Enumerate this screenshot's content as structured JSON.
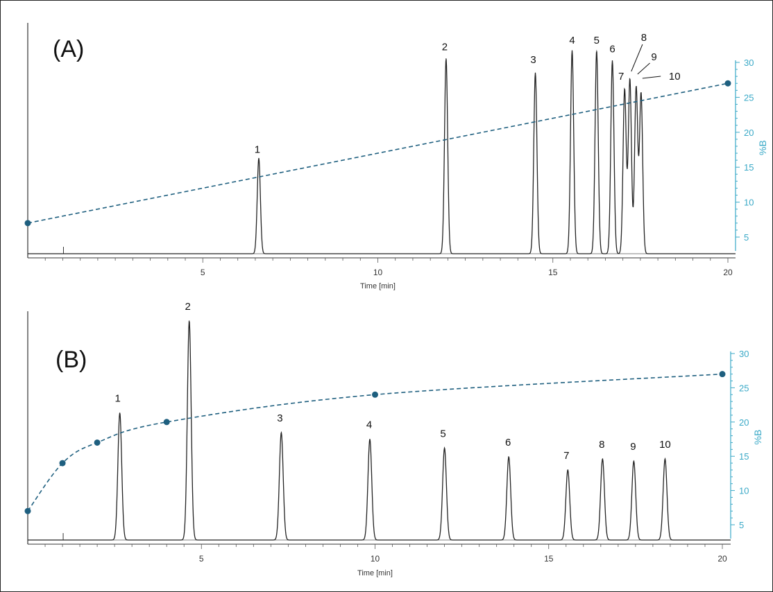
{
  "colors": {
    "trace": "#222222",
    "gradient": "#1e5f7f",
    "right_axis": "#3aa9c7",
    "frame": "#222222"
  },
  "chart_data": [
    {
      "panel_label": "(A)",
      "type": "line",
      "xlabel": "Time [min]",
      "ylabel_right": "%B",
      "x_ticks": [
        "5",
        "10",
        "15",
        "20"
      ],
      "x_range": [
        0,
        20
      ],
      "y_right_ticks": [
        "5",
        "10",
        "15",
        "20",
        "25",
        "30"
      ],
      "y_right_range": [
        2.5,
        30
      ],
      "peaks": [
        {
          "label": "1",
          "time": 6.6,
          "relative_height": 0.47
        },
        {
          "label": "2",
          "time": 11.95,
          "relative_height": 0.96
        },
        {
          "label": "3",
          "time": 14.5,
          "relative_height": 0.89
        },
        {
          "label": "4",
          "time": 15.55,
          "relative_height": 1.0
        },
        {
          "label": "5",
          "time": 16.25,
          "relative_height": 1.0
        },
        {
          "label": "6",
          "time": 16.7,
          "relative_height": 0.95
        },
        {
          "label": "7",
          "time": 17.05,
          "relative_height": 0.81
        },
        {
          "label": "8",
          "time": 17.2,
          "relative_height": 0.86
        },
        {
          "label": "9",
          "time": 17.38,
          "relative_height": 0.82
        },
        {
          "label": "10",
          "time": 17.52,
          "relative_height": 0.79
        }
      ],
      "gradient_series": {
        "name": "",
        "x": [
          0,
          20
        ],
        "y": [
          7,
          27
        ]
      }
    },
    {
      "panel_label": "(B)",
      "type": "line",
      "xlabel": "Time [min]",
      "ylabel_right": "%B",
      "x_ticks": [
        "5",
        "10",
        "15",
        "20"
      ],
      "x_range": [
        0,
        20
      ],
      "y_right_ticks": [
        "5",
        "10",
        "15",
        "20",
        "25",
        "30"
      ],
      "y_right_range": [
        2.5,
        30
      ],
      "peaks": [
        {
          "label": "1",
          "time": 2.65,
          "relative_height": 0.58
        },
        {
          "label": "2",
          "time": 4.65,
          "relative_height": 1.0
        },
        {
          "label": "3",
          "time": 7.3,
          "relative_height": 0.49
        },
        {
          "label": "4",
          "time": 9.85,
          "relative_height": 0.46
        },
        {
          "label": "5",
          "time": 12.0,
          "relative_height": 0.42
        },
        {
          "label": "6",
          "time": 13.85,
          "relative_height": 0.38
        },
        {
          "label": "7",
          "time": 15.55,
          "relative_height": 0.32
        },
        {
          "label": "8",
          "time": 16.55,
          "relative_height": 0.37
        },
        {
          "label": "9",
          "time": 17.45,
          "relative_height": 0.36
        },
        {
          "label": "10",
          "time": 18.35,
          "relative_height": 0.37
        }
      ],
      "gradient_series": {
        "name": "",
        "x": [
          0,
          1,
          2,
          4,
          10,
          20
        ],
        "y": [
          7,
          14,
          17,
          20,
          24,
          27
        ]
      }
    }
  ]
}
